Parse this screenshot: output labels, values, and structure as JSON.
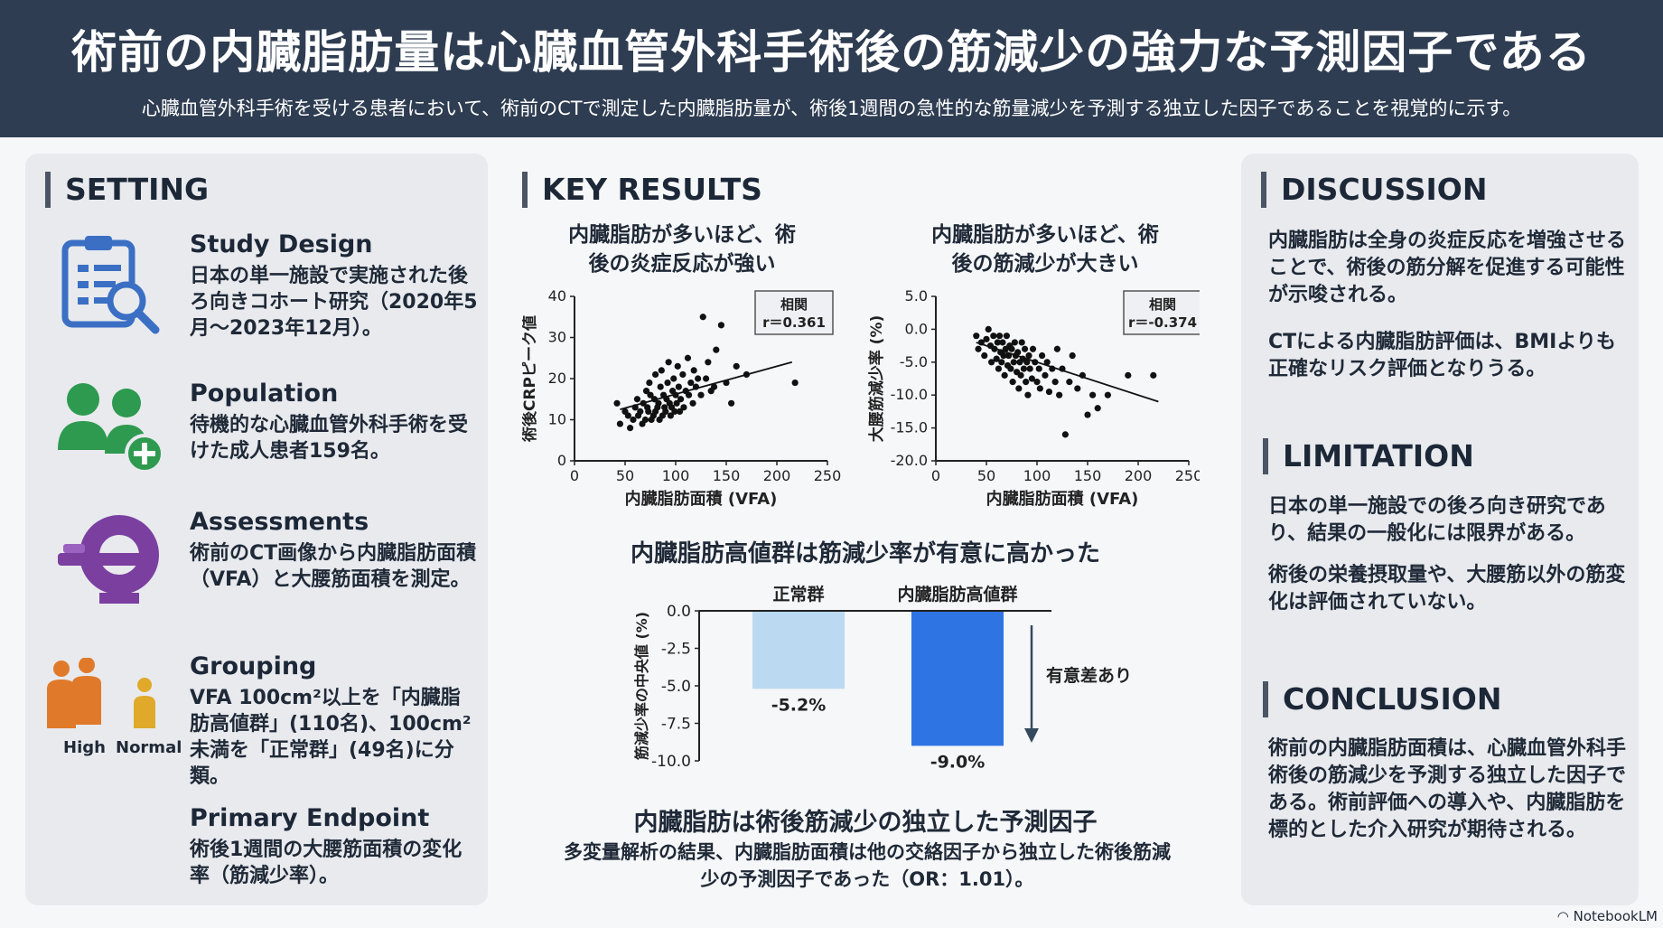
{
  "header": {
    "title": "術前の内臓脂肪量は心臓血管外科手術後の筋減少の強力な予測因子である",
    "subtitle": "心臓血管外科手術を受ける患者において、術前のCTで測定した内臓脂肪量が、術後1週間の急性的な筋量減少を予測する独立した因子であることを視覚的に示す。"
  },
  "setting": {
    "title": "SETTING",
    "items": [
      {
        "icon": "clipboard-magnifier-icon",
        "heading": "Study Design",
        "text": "日本の単一施設で実施された後ろ向きコホート研究（2020年5月〜2023年12月）。"
      },
      {
        "icon": "people-add-icon",
        "heading": "Population",
        "text": "待機的な心臓血管外科手術を受けた成人患者159名。"
      },
      {
        "icon": "ct-scanner-icon",
        "heading": "Assessments",
        "text": "術前のCT画像から内臓脂肪面積（VFA）と大腰筋面積を測定。"
      },
      {
        "icon": "body-size-icon",
        "heading": "Grouping",
        "text": "VFA 100cm²以上を「内臓脂肪高値群」(110名)、100cm²未満を「正常群」(49名)に分類。",
        "label_high": "High",
        "label_normal": "Normal"
      },
      {
        "icon": "",
        "heading": "Primary Endpoint",
        "text": "術後1週間の大腰筋面積の変化率（筋減少率）。"
      }
    ]
  },
  "key_results": {
    "title": "KEY RESULTS",
    "subhead_bar": "内臓脂肪高値群は筋減少率が有意に高かった",
    "significance_label": "有意差あり",
    "conclusion_head": "内臓脂肪は術後筋減少の独立した予測因子",
    "conclusion_text": "多変量解析の結果、内臓脂肪面積は他の交絡因子から独立した術後筋減少の予測因子であった（OR：1.01）。"
  },
  "chart_data": [
    {
      "type": "scatter",
      "title": "内臓脂肪が多いほど、術後の炎症反応が強い",
      "xlabel": "内臓脂肪面積 (VFA)",
      "ylabel": "術後CRPピーク値",
      "xlim": [
        0,
        250
      ],
      "ylim": [
        0,
        40
      ],
      "xticks": [
        "0",
        "50",
        "100",
        "150",
        "200",
        "250"
      ],
      "yticks": [
        "0",
        "10",
        "20",
        "30",
        "40"
      ],
      "annotation": {
        "label": "相関",
        "value": "r＝0.361"
      },
      "trend": [
        [
          45,
          12.5
        ],
        [
          215,
          24
        ]
      ],
      "points": [
        [
          42,
          14
        ],
        [
          45,
          9
        ],
        [
          50,
          12
        ],
        [
          53,
          11
        ],
        [
          55,
          8
        ],
        [
          58,
          10
        ],
        [
          60,
          13
        ],
        [
          62,
          15
        ],
        [
          63,
          11
        ],
        [
          65,
          12
        ],
        [
          67,
          9
        ],
        [
          68,
          14
        ],
        [
          70,
          10
        ],
        [
          71,
          17
        ],
        [
          72,
          13
        ],
        [
          73,
          12
        ],
        [
          74,
          19
        ],
        [
          75,
          16
        ],
        [
          76,
          10
        ],
        [
          78,
          11
        ],
        [
          79,
          15
        ],
        [
          80,
          12
        ],
        [
          80,
          21
        ],
        [
          82,
          13
        ],
        [
          83,
          14
        ],
        [
          84,
          10
        ],
        [
          85,
          18
        ],
        [
          86,
          22
        ],
        [
          87,
          11
        ],
        [
          88,
          16
        ],
        [
          89,
          13
        ],
        [
          90,
          12
        ],
        [
          91,
          15
        ],
        [
          92,
          19
        ],
        [
          93,
          24
        ],
        [
          94,
          14
        ],
        [
          95,
          11
        ],
        [
          96,
          13
        ],
        [
          97,
          17
        ],
        [
          98,
          20
        ],
        [
          99,
          12
        ],
        [
          100,
          16
        ],
        [
          101,
          14
        ],
        [
          102,
          23
        ],
        [
          103,
          18
        ],
        [
          104,
          12
        ],
        [
          105,
          15
        ],
        [
          107,
          21
        ],
        [
          108,
          13
        ],
        [
          110,
          17
        ],
        [
          112,
          25
        ],
        [
          113,
          16
        ],
        [
          115,
          19
        ],
        [
          117,
          14
        ],
        [
          118,
          22
        ],
        [
          120,
          18
        ],
        [
          122,
          20
        ],
        [
          125,
          16
        ],
        [
          127,
          35
        ],
        [
          130,
          20
        ],
        [
          132,
          24
        ],
        [
          135,
          17
        ],
        [
          138,
          18
        ],
        [
          140,
          27
        ],
        [
          145,
          33
        ],
        [
          150,
          19
        ],
        [
          155,
          14
        ],
        [
          160,
          23
        ],
        [
          170,
          21
        ],
        [
          218,
          19
        ]
      ]
    },
    {
      "type": "scatter",
      "title": "内臓脂肪が多いほど、術後の筋減少が大きい",
      "xlabel": "内臓脂肪面積 (VFA)",
      "ylabel": "大腰筋減少率 (%)",
      "xlim": [
        0,
        250
      ],
      "ylim": [
        -20,
        5
      ],
      "xticks": [
        "0",
        "50",
        "100",
        "150",
        "200",
        "250"
      ],
      "yticks": [
        "5.0",
        "0.0",
        "-5.0",
        "-10.0",
        "-15.0",
        "-20.0"
      ],
      "annotation": {
        "label": "相関",
        "value": "r＝-0.374"
      },
      "trend": [
        [
          40,
          -2
        ],
        [
          220,
          -11
        ]
      ],
      "points": [
        [
          40,
          -1
        ],
        [
          42,
          -3
        ],
        [
          45,
          -2
        ],
        [
          48,
          -4
        ],
        [
          50,
          -1.5
        ],
        [
          52,
          0
        ],
        [
          54,
          -2.5
        ],
        [
          55,
          -5
        ],
        [
          57,
          -1
        ],
        [
          58,
          -3
        ],
        [
          60,
          -4.5
        ],
        [
          61,
          -2
        ],
        [
          62,
          -6
        ],
        [
          63,
          -1
        ],
        [
          64,
          -3.5
        ],
        [
          65,
          -5
        ],
        [
          66,
          -2
        ],
        [
          67,
          -4
        ],
        [
          68,
          -7
        ],
        [
          69,
          -3
        ],
        [
          70,
          -1
        ],
        [
          71,
          -5.5
        ],
        [
          72,
          -4
        ],
        [
          73,
          -2.5
        ],
        [
          74,
          -6
        ],
        [
          75,
          -3
        ],
        [
          76,
          -8
        ],
        [
          77,
          -5
        ],
        [
          78,
          -2
        ],
        [
          79,
          -4
        ],
        [
          80,
          -6.5
        ],
        [
          81,
          -3.5
        ],
        [
          82,
          -9
        ],
        [
          83,
          -5
        ],
        [
          84,
          -7
        ],
        [
          85,
          -2
        ],
        [
          86,
          -4.5
        ],
        [
          87,
          -6
        ],
        [
          88,
          -3
        ],
        [
          89,
          -8
        ],
        [
          90,
          -5
        ],
        [
          91,
          -10
        ],
        [
          92,
          -4
        ],
        [
          93,
          -6
        ],
        [
          95,
          -7.5
        ],
        [
          96,
          -3
        ],
        [
          98,
          -5
        ],
        [
          100,
          -8
        ],
        [
          102,
          -6
        ],
        [
          103,
          -9
        ],
        [
          105,
          -4
        ],
        [
          108,
          -7
        ],
        [
          110,
          -5
        ],
        [
          112,
          -9.5
        ],
        [
          115,
          -6
        ],
        [
          118,
          -8
        ],
        [
          120,
          -3
        ],
        [
          122,
          -10
        ],
        [
          125,
          -6
        ],
        [
          128,
          -16
        ],
        [
          132,
          -8
        ],
        [
          135,
          -4
        ],
        [
          140,
          -9
        ],
        [
          145,
          -7
        ],
        [
          150,
          -13
        ],
        [
          155,
          -10
        ],
        [
          160,
          -12
        ],
        [
          170,
          -10
        ],
        [
          190,
          -7
        ],
        [
          215,
          -7
        ]
      ]
    },
    {
      "type": "bar",
      "ylabel": "筋減少率の中央値 (%)",
      "ylim": [
        -10,
        0
      ],
      "yticks": [
        "0.0",
        "-2.5",
        "-5.0",
        "-7.5",
        "-10.0"
      ],
      "categories": [
        "正常群",
        "内臓脂肪高値群"
      ],
      "values": [
        -5.2,
        -9.0
      ],
      "value_labels": [
        "-5.2%",
        "-9.0%"
      ],
      "colors": [
        "#bcd9f2",
        "#2f74e3"
      ]
    }
  ],
  "discussion": {
    "title": "DISCUSSION",
    "p1": "内臓脂肪は全身の炎症反応を増強させることで、術後の筋分解を促進する可能性が示唆される。",
    "p2": "CTによる内臓脂肪評価は、BMIよりも正確なリスク評価となりうる。"
  },
  "limitation": {
    "title": "LIMITATION",
    "p1": "日本の単一施設での後ろ向き研究であり、結果の一般化には限界がある。",
    "p2": "術後の栄養摂取量や、大腰筋以外の筋変化は評価されていない。"
  },
  "conclusion": {
    "title": "CONCLUSION",
    "p1": "術前の内臓脂肪面積は、心臓血管外科手術後の筋減少を予測する独立した因子である。術前評価への導入や、内臓脂肪を標的とした介入研究が期待される。"
  },
  "footer": {
    "brand": "NotebookLM"
  },
  "colors": {
    "header_bg": "#2f3d52",
    "panel_bg": "#e8eaee",
    "icon_blue": "#3a6fc4",
    "icon_green": "#2e9a4f",
    "icon_purple": "#7b3fa0",
    "icon_orange": "#e07a2a",
    "icon_yellow": "#e0a92a",
    "bar_normal": "#bcd9f2",
    "bar_high": "#2f74e3"
  }
}
